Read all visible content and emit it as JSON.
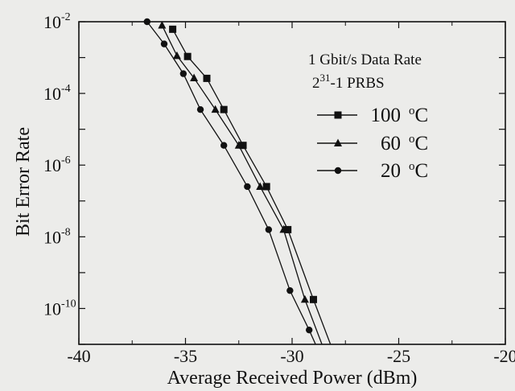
{
  "chart_data": {
    "type": "line",
    "xlabel": "Average Received Power (dBm)",
    "ylabel": "Bit Error Rate",
    "xlim": [
      -40,
      -20
    ],
    "ylim_log10": [
      -11,
      -2
    ],
    "y_scale": "log",
    "grid": false,
    "legend_placement": "top-right",
    "legend_title": [
      "1 Gbit/s Data Rate",
      "PRBS"
    ],
    "legend_title_exponent": {
      "base": "2",
      "exponent": "31",
      "suffix": "-1 PRBS"
    },
    "x_ticks": [
      {
        "value": -40,
        "label": "-40"
      },
      {
        "value": -35,
        "label": "-35"
      },
      {
        "value": -30,
        "label": "-30"
      },
      {
        "value": -25,
        "label": "-25"
      },
      {
        "value": -20,
        "label": "-20"
      }
    ],
    "y_ticks": [
      {
        "value": -2,
        "base": "10",
        "exp": "-2"
      },
      {
        "value": -4,
        "base": "10",
        "exp": "-4"
      },
      {
        "value": -6,
        "base": "10",
        "exp": "-6"
      },
      {
        "value": -8,
        "base": "10",
        "exp": "-8"
      },
      {
        "value": -10,
        "base": "10",
        "exp": "-10"
      }
    ],
    "series": [
      {
        "name": "100 °C",
        "label_num": "100",
        "label_unit": "oC",
        "marker": "square",
        "points": [
          [
            -35.6,
            -2.21
          ],
          [
            -34.9,
            -2.97
          ],
          [
            -34.0,
            -3.58
          ],
          [
            -33.2,
            -4.45
          ],
          [
            -32.3,
            -5.45
          ],
          [
            -31.2,
            -6.6
          ],
          [
            -30.2,
            -7.8
          ],
          [
            -29.0,
            -9.75
          ],
          [
            -28.2,
            -11.0
          ]
        ]
      },
      {
        "name": "60 °C",
        "label_num": "60",
        "label_unit": "oC",
        "marker": "triangle",
        "points": [
          [
            -36.1,
            -2.1
          ],
          [
            -35.4,
            -2.95
          ],
          [
            -34.6,
            -3.57
          ],
          [
            -33.6,
            -4.45
          ],
          [
            -32.5,
            -5.45
          ],
          [
            -31.5,
            -6.6
          ],
          [
            -30.4,
            -7.8
          ],
          [
            -29.4,
            -9.75
          ],
          [
            -28.6,
            -11.0
          ]
        ]
      },
      {
        "name": "20 °C",
        "label_num": "20",
        "label_unit": "oC",
        "marker": "circle",
        "points": [
          [
            -36.8,
            -2.0
          ],
          [
            -36.0,
            -2.62
          ],
          [
            -35.1,
            -3.45
          ],
          [
            -34.3,
            -4.45
          ],
          [
            -33.2,
            -5.45
          ],
          [
            -32.1,
            -6.6
          ],
          [
            -31.1,
            -7.8
          ],
          [
            -30.1,
            -9.5
          ],
          [
            -29.2,
            -10.6
          ],
          [
            -28.9,
            -11.0
          ]
        ]
      }
    ]
  }
}
